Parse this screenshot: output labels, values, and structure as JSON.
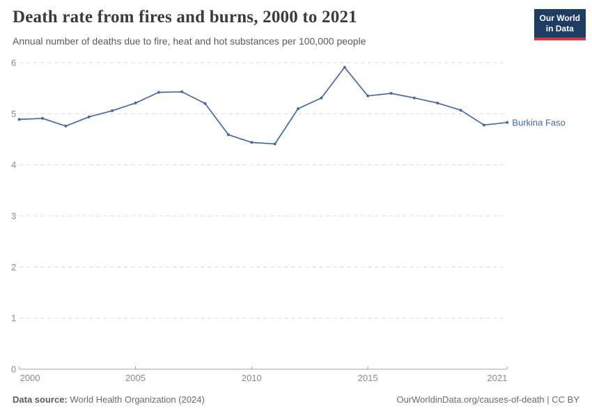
{
  "header": {
    "title": "Death rate from fires and burns, 2000 to 2021",
    "subtitle": "Annual number of deaths due to fire, heat and hot substances per 100,000 people",
    "logo": {
      "line1": "Our World",
      "line2": "in Data"
    }
  },
  "chart_data": {
    "type": "line",
    "title": "Death rate from fires and burns, 2000 to 2021",
    "xlabel": "",
    "ylabel": "",
    "xlim": [
      2000,
      2021
    ],
    "ylim": [
      0,
      6
    ],
    "x_ticks": [
      2000,
      2005,
      2010,
      2015,
      2021
    ],
    "y_ticks": [
      0,
      1,
      2,
      3,
      4,
      5,
      6
    ],
    "grid": "horizontal-dashed",
    "legend_position": "end-of-line label",
    "x": [
      2000,
      2001,
      2002,
      2003,
      2004,
      2005,
      2006,
      2007,
      2008,
      2009,
      2010,
      2011,
      2012,
      2013,
      2014,
      2015,
      2016,
      2017,
      2018,
      2019,
      2020,
      2021
    ],
    "series": [
      {
        "name": "Burkina Faso",
        "color": "#4569a3",
        "values": [
          4.89,
          4.91,
          4.76,
          4.94,
          5.06,
          5.21,
          5.42,
          5.43,
          5.2,
          4.59,
          4.44,
          4.41,
          5.1,
          5.31,
          5.91,
          5.35,
          5.4,
          5.31,
          5.21,
          5.07,
          4.78,
          4.83
        ]
      }
    ]
  },
  "footer": {
    "source_label": "Data source:",
    "source_text": "World Health Organization (2024)",
    "credit": "OurWorldinData.org/causes-of-death | CC BY"
  },
  "colors": {
    "line": "#4569a3",
    "logo_navy": "#1d3d63",
    "logo_red": "#d13b41",
    "grid": "#dcdcdc",
    "axis": "#a3a3a3",
    "tick_label": "#8a8a8a"
  }
}
